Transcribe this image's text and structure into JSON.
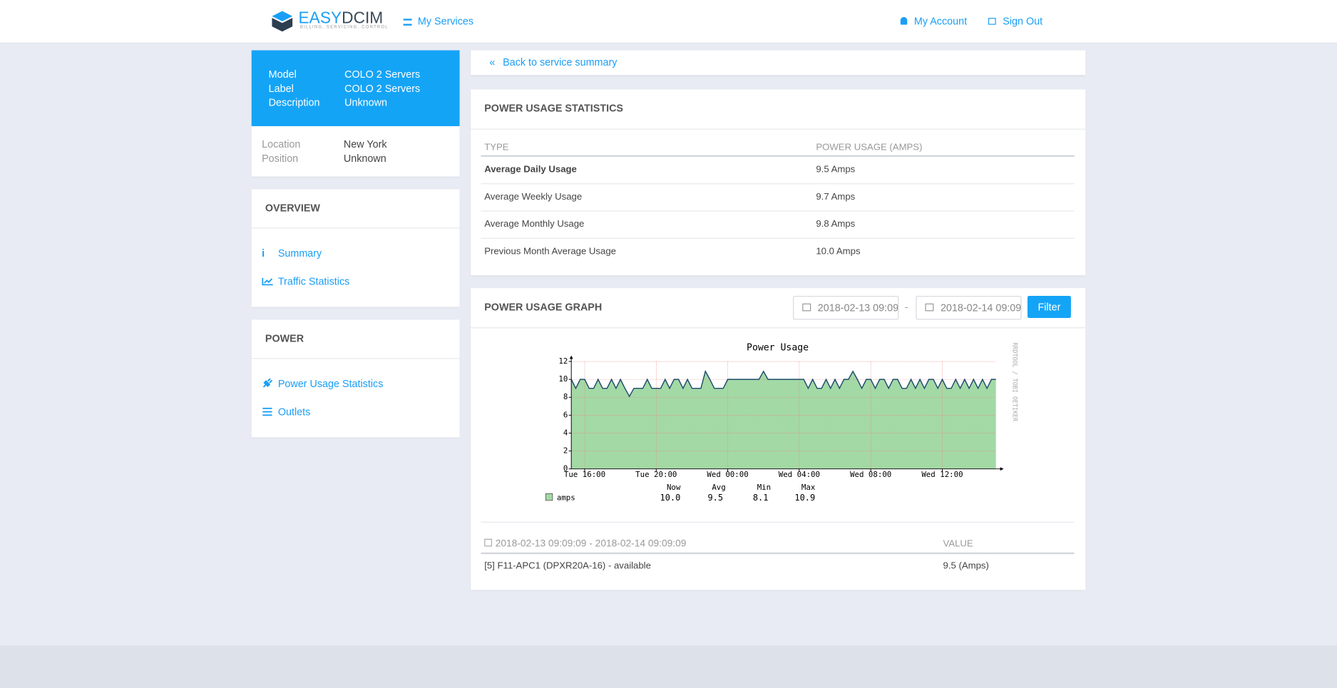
{
  "header": {
    "brand": [
      "EASY",
      "DCIM"
    ],
    "tagline": "BILLING. SERVICING. CONTROL",
    "nav": [
      "My Services"
    ],
    "account": [
      "My Account",
      "Sign Out"
    ]
  },
  "service": {
    "rows": [
      [
        "Model",
        "COLO 2 Servers"
      ],
      [
        "Label",
        "COLO 2 Servers"
      ],
      [
        "Description",
        "Unknown"
      ]
    ],
    "details": [
      [
        "Location",
        "New York"
      ],
      [
        "Position",
        "Unknown"
      ]
    ]
  },
  "overview": {
    "title": "OVERVIEW",
    "links": [
      "Summary",
      "Traffic Statistics"
    ]
  },
  "power": {
    "title": "POWER",
    "links": [
      "Power Usage Statistics",
      "Outlets"
    ]
  },
  "back": "Back to service summary",
  "stats": {
    "title": "POWER USAGE STATISTICS",
    "columns": [
      "TYPE",
      "POWER USAGE (AMPS)"
    ],
    "rows": [
      [
        "Average Daily Usage",
        "9.5 Amps"
      ],
      [
        "Average Weekly Usage",
        "9.7 Amps"
      ],
      [
        "Average Monthly Usage",
        "9.8 Amps"
      ],
      [
        "Previous Month Average Usage",
        "10.0 Amps"
      ]
    ]
  },
  "graph_panel": {
    "title": "POWER USAGE GRAPH",
    "from": "2018-02-13 09:09:09",
    "separator": "-",
    "to": "2018-02-14 09:09:09",
    "button": "Filter"
  },
  "chart_data": {
    "type": "area",
    "title": "Power Usage",
    "watermark": "RRDTOOL / TOBI OETIKER",
    "categories": [
      null,
      null,
      null,
      "Tue 16:00",
      null,
      null,
      null,
      null,
      null,
      null,
      null,
      null,
      null,
      null,
      null,
      null,
      null,
      null,
      null,
      "Tue 20:00",
      null,
      null,
      null,
      null,
      null,
      null,
      null,
      null,
      null,
      null,
      null,
      null,
      null,
      null,
      null,
      "Wed 00:00",
      null,
      null,
      null,
      null,
      null,
      null,
      null,
      null,
      null,
      null,
      null,
      null,
      null,
      null,
      null,
      "Wed 04:00",
      null,
      null,
      null,
      null,
      null,
      null,
      null,
      null,
      null,
      null,
      null,
      null,
      null,
      null,
      null,
      "Wed 08:00",
      null,
      null,
      null,
      null,
      null,
      null,
      null,
      null,
      null,
      null,
      null,
      null,
      null,
      null,
      null,
      "Wed 12:00",
      null,
      null,
      null,
      null,
      null,
      null,
      null,
      null,
      null,
      null,
      null,
      null
    ],
    "series": [
      {
        "name": "amps",
        "color": "#a3d9a5",
        "line_color": "#1e4b6b",
        "values": [
          10,
          9,
          10,
          10,
          9,
          9,
          10,
          9,
          9,
          10,
          9,
          10,
          9,
          8.1,
          9,
          9,
          9,
          10,
          9,
          9,
          9,
          10,
          9,
          10,
          10,
          9,
          10,
          9,
          9,
          9,
          10.9,
          10,
          9,
          9,
          9,
          10,
          10,
          10,
          10,
          10,
          10,
          10,
          10,
          10.9,
          10,
          10,
          10,
          10,
          10,
          10,
          10,
          10,
          10,
          9,
          10,
          9,
          9,
          10,
          9,
          10,
          9,
          10,
          10,
          10.9,
          10,
          9,
          10,
          10,
          9,
          10,
          10,
          9,
          10,
          10,
          9,
          9,
          10,
          9,
          10,
          9,
          10,
          10,
          9,
          10,
          9,
          9,
          10,
          9,
          10,
          9,
          10,
          9,
          10,
          9,
          10,
          10
        ]
      }
    ],
    "ylim": [
      0,
      12
    ],
    "yticks": [
      0,
      2,
      4,
      6,
      8,
      10,
      12
    ],
    "grid": true,
    "legend_headers": [
      "Now",
      "Avg",
      "Min",
      "Max"
    ],
    "legend_stats": [
      "10.0",
      "9.5",
      "8.1",
      "10.9"
    ]
  },
  "summary": {
    "range": "2018-02-13 09:09:09 - 2018-02-14 09:09:09",
    "value_header": "VALUE",
    "rows": [
      [
        "[5] F11-APC1 (DPXR20A-16) - available",
        "9.5 (Amps)"
      ]
    ]
  }
}
